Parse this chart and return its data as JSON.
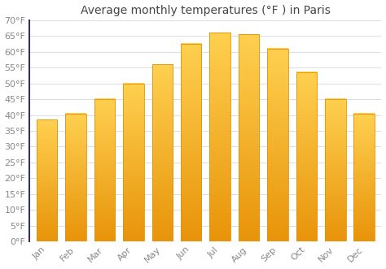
{
  "title": "Average monthly temperatures (°F ) in Paris",
  "months": [
    "Jan",
    "Feb",
    "Mar",
    "Apr",
    "May",
    "Jun",
    "Jul",
    "Aug",
    "Sep",
    "Oct",
    "Nov",
    "Dec"
  ],
  "values": [
    38.5,
    40.5,
    45.0,
    50.0,
    56.0,
    62.5,
    66.0,
    65.5,
    61.0,
    53.5,
    45.0,
    40.5
  ],
  "bar_color_main": "#FFC020",
  "bar_color_edge": "#E89000",
  "ylim": [
    0,
    70
  ],
  "yticks": [
    0,
    5,
    10,
    15,
    20,
    25,
    30,
    35,
    40,
    45,
    50,
    55,
    60,
    65,
    70
  ],
  "ytick_labels": [
    "0°F",
    "5°F",
    "10°F",
    "15°F",
    "20°F",
    "25°F",
    "30°F",
    "35°F",
    "40°F",
    "45°F",
    "50°F",
    "55°F",
    "60°F",
    "65°F",
    "70°F"
  ],
  "grid_color": "#d8dce8",
  "background_color": "#ffffff",
  "plot_bg_color": "#ffffff",
  "title_fontsize": 10,
  "tick_fontsize": 8,
  "font_color": "#888888",
  "bar_width": 0.72,
  "left_spine_color": "#333355"
}
